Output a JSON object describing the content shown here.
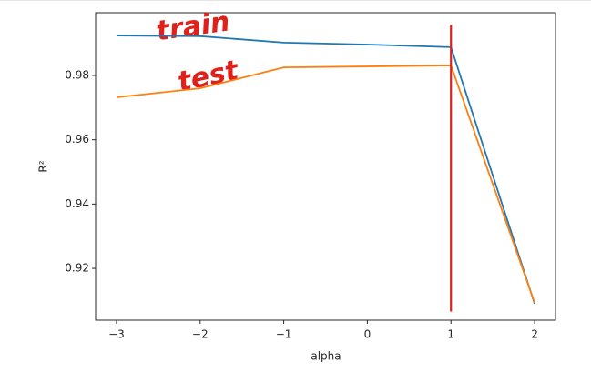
{
  "chart_data": {
    "type": "line",
    "x": [
      -3,
      -2,
      -1,
      0,
      1,
      2
    ],
    "series": [
      {
        "name": "train",
        "color": "#1f77b4",
        "values": [
          0.9924,
          0.9922,
          0.9902,
          0.9896,
          0.9888,
          0.909
        ]
      },
      {
        "name": "test",
        "color": "#ff7f0e",
        "values": [
          0.9732,
          0.976,
          0.9825,
          0.9828,
          0.9831,
          0.9093
        ]
      }
    ],
    "xlabel": "alpha",
    "ylabel": "R²",
    "xlim": [
      -3.25,
      2.25
    ],
    "xticks": [
      {
        "value": -3,
        "label": "−3"
      },
      {
        "value": -2,
        "label": "−2"
      },
      {
        "value": -1,
        "label": "−1"
      },
      0,
      1,
      2
    ],
    "ylim": [
      0.9039,
      0.9995
    ],
    "yticks": [
      0.92,
      0.94,
      0.96,
      0.98
    ],
    "vline": {
      "x": 1,
      "ymin": 0.9066,
      "ymax": 0.9958,
      "color": "#e0201b"
    },
    "annotations": [
      {
        "text": "train",
        "color": "#e0201b"
      },
      {
        "text": "test",
        "color": "#e0201b"
      }
    ]
  }
}
